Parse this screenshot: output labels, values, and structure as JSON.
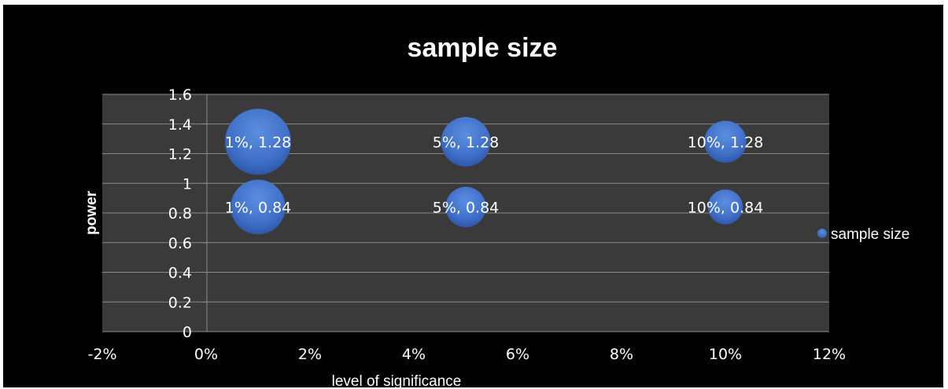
{
  "chart_data": {
    "type": "bubble",
    "title": "sample size",
    "xlabel": "level of significance",
    "ylabel": "power",
    "xlim": [
      -0.02,
      0.12
    ],
    "ylim": [
      0,
      1.6
    ],
    "x_ticks": [
      "-2%",
      "0%",
      "2%",
      "4%",
      "6%",
      "8%",
      "10%",
      "12%"
    ],
    "x_tick_values": [
      -0.02,
      0,
      0.02,
      0.04,
      0.06,
      0.08,
      0.1,
      0.12
    ],
    "y_ticks": [
      "0",
      "0.2",
      "0.4",
      "0.6",
      "0.8",
      "1",
      "1.2",
      "1.4",
      "1.6"
    ],
    "y_tick_values": [
      0,
      0.2,
      0.4,
      0.6,
      0.8,
      1.0,
      1.2,
      1.4,
      1.6
    ],
    "grid": true,
    "legend_position": "right",
    "series": [
      {
        "name": "sample size",
        "color": "#4472C4",
        "points": [
          {
            "x": 0.01,
            "y": 1.28,
            "size": 32,
            "label": "1%, 1.28"
          },
          {
            "x": 0.01,
            "y": 0.84,
            "size": 22,
            "label": "1%, 0.84"
          },
          {
            "x": 0.05,
            "y": 1.28,
            "size": 18,
            "label": "5%, 1.28"
          },
          {
            "x": 0.05,
            "y": 0.84,
            "size": 12,
            "label": "5%, 0.84"
          },
          {
            "x": 0.1,
            "y": 1.28,
            "size": 13,
            "label": "10%, 1.28"
          },
          {
            "x": 0.1,
            "y": 0.84,
            "size": 9,
            "label": "10%, 0.84"
          }
        ]
      }
    ]
  }
}
